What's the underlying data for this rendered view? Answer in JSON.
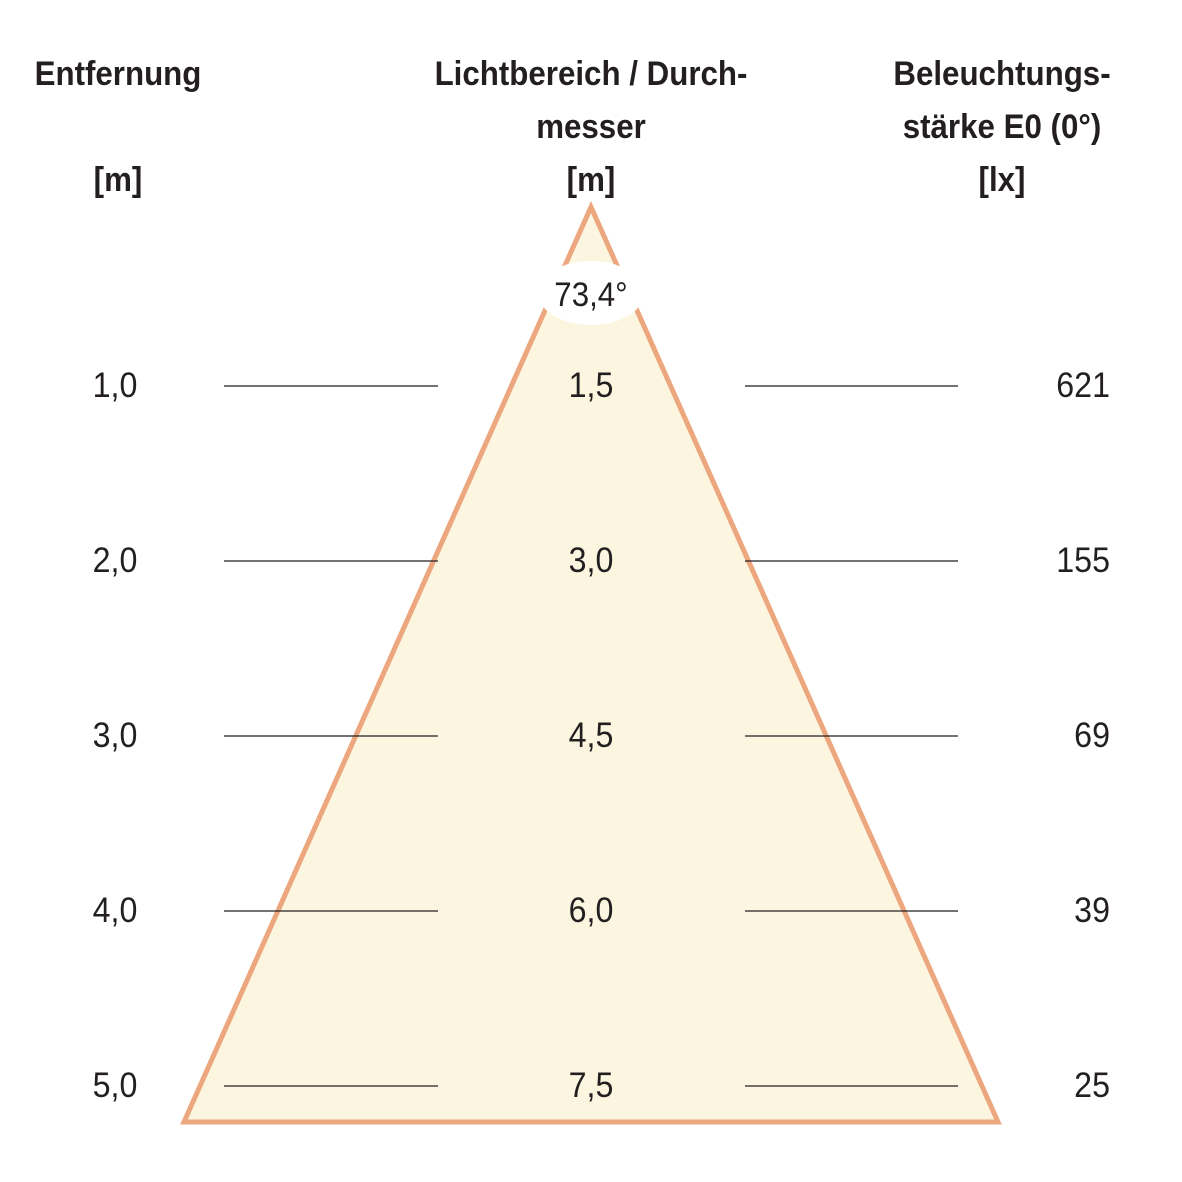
{
  "headers": {
    "distance": {
      "line1": "Entfernung",
      "line2": "",
      "unit": "[m]"
    },
    "diameter": {
      "line1": "Lichtbereich / Durch-",
      "line2": "messer",
      "unit": "[m]"
    },
    "illuminance": {
      "line1": "Beleuchtungs-",
      "line2": "stärke E0 (0°)",
      "unit": "[lx]"
    }
  },
  "beam_angle": "73,4°",
  "rows": [
    {
      "distance": "1,0",
      "diameter": "1,5",
      "illuminance": "621"
    },
    {
      "distance": "2,0",
      "diameter": "3,0",
      "illuminance": "155"
    },
    {
      "distance": "3,0",
      "diameter": "4,5",
      "illuminance": "69"
    },
    {
      "distance": "4,0",
      "diameter": "6,0",
      "illuminance": "39"
    },
    {
      "distance": "5,0",
      "diameter": "7,5",
      "illuminance": "25"
    }
  ],
  "colors": {
    "cone_fill": "#fcf6e1",
    "cone_stroke": "#eda77e",
    "text": "#231f20",
    "guide_line": "#231f20"
  }
}
